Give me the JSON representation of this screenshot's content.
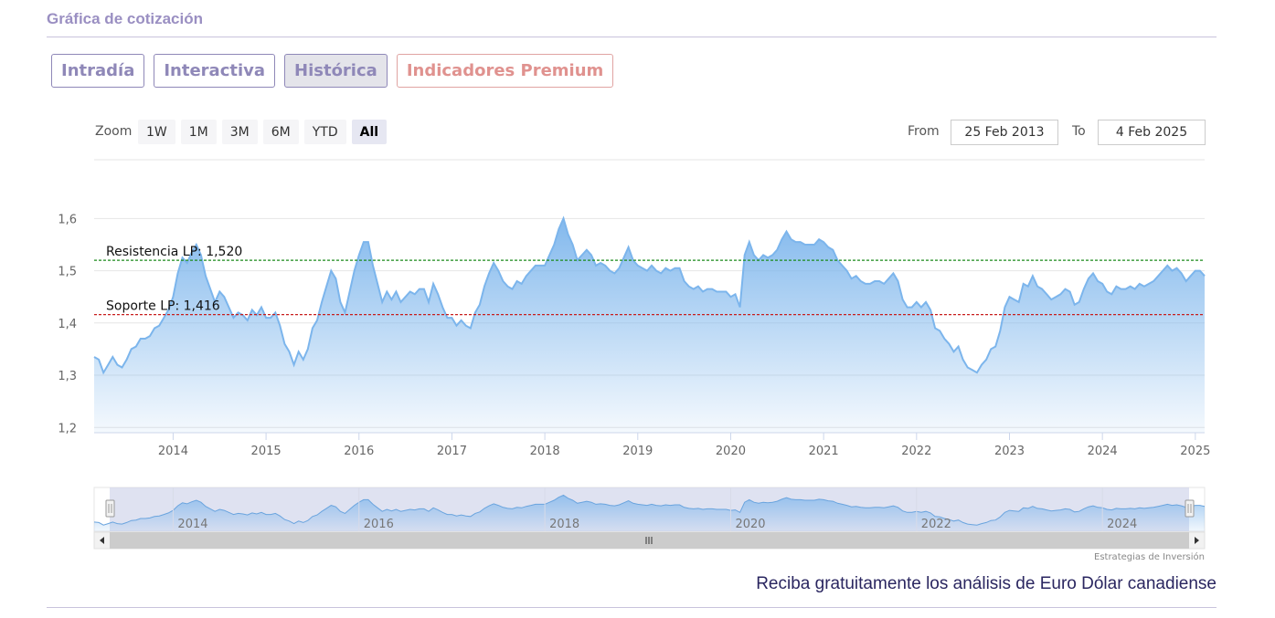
{
  "section_title": "Gráfica de cotización",
  "tabs": [
    {
      "label": "Intradía",
      "active": false,
      "premium": false
    },
    {
      "label": "Interactiva",
      "active": false,
      "premium": false
    },
    {
      "label": "Histórica",
      "active": true,
      "premium": false
    },
    {
      "label": "Indicadores Premium",
      "active": false,
      "premium": true
    }
  ],
  "zoom": {
    "label": "Zoom",
    "buttons": [
      "1W",
      "1M",
      "3M",
      "6M",
      "YTD",
      "All"
    ],
    "selected": "All"
  },
  "range": {
    "from_label": "From",
    "from_value": "25 Feb 2013",
    "to_label": "To",
    "to_value": "4 Feb 2025"
  },
  "colors": {
    "series_line": "#7cb5ec",
    "resistance_line": "#1a8a1a",
    "support_line": "#c81e1e",
    "navigator_mask": "#c5cbe6"
  },
  "chart_data": {
    "type": "area",
    "y_ticks": [
      "1,2",
      "1,3",
      "1,4",
      "1,5",
      "1,6"
    ],
    "ylim": [
      1.19,
      1.66
    ],
    "x_ticks": [
      "2014",
      "2015",
      "2016",
      "2017",
      "2018",
      "2019",
      "2020",
      "2021",
      "2022",
      "2023",
      "2024",
      "2025"
    ],
    "xlim": [
      2013.15,
      2025.1
    ],
    "navigator_ticks": [
      "2014",
      "2016",
      "2018",
      "2020",
      "2022",
      "2024"
    ],
    "plot_lines": [
      {
        "label": "Resistencia LP: 1,520",
        "value": 1.52
      },
      {
        "label": "Soporte LP: 1,416",
        "value": 1.416
      }
    ],
    "credit": "Estrategias de Inversión",
    "series": [
      {
        "values": [
          [
            2013.15,
            1.335
          ],
          [
            2013.2,
            1.33
          ],
          [
            2013.25,
            1.305
          ],
          [
            2013.3,
            1.32
          ],
          [
            2013.35,
            1.335
          ],
          [
            2013.4,
            1.32
          ],
          [
            2013.45,
            1.315
          ],
          [
            2013.5,
            1.33
          ],
          [
            2013.55,
            1.35
          ],
          [
            2013.6,
            1.355
          ],
          [
            2013.65,
            1.37
          ],
          [
            2013.7,
            1.37
          ],
          [
            2013.75,
            1.375
          ],
          [
            2013.8,
            1.39
          ],
          [
            2013.85,
            1.395
          ],
          [
            2013.9,
            1.41
          ],
          [
            2013.95,
            1.425
          ],
          [
            2014.0,
            1.45
          ],
          [
            2014.05,
            1.495
          ],
          [
            2014.1,
            1.525
          ],
          [
            2014.15,
            1.515
          ],
          [
            2014.2,
            1.535
          ],
          [
            2014.25,
            1.55
          ],
          [
            2014.3,
            1.53
          ],
          [
            2014.35,
            1.49
          ],
          [
            2014.4,
            1.465
          ],
          [
            2014.45,
            1.44
          ],
          [
            2014.5,
            1.46
          ],
          [
            2014.55,
            1.45
          ],
          [
            2014.6,
            1.43
          ],
          [
            2014.65,
            1.41
          ],
          [
            2014.7,
            1.42
          ],
          [
            2014.75,
            1.415
          ],
          [
            2014.8,
            1.405
          ],
          [
            2014.85,
            1.425
          ],
          [
            2014.9,
            1.415
          ],
          [
            2014.95,
            1.43
          ],
          [
            2015.0,
            1.41
          ],
          [
            2015.05,
            1.41
          ],
          [
            2015.1,
            1.42
          ],
          [
            2015.15,
            1.395
          ],
          [
            2015.2,
            1.36
          ],
          [
            2015.25,
            1.345
          ],
          [
            2015.3,
            1.32
          ],
          [
            2015.35,
            1.345
          ],
          [
            2015.4,
            1.33
          ],
          [
            2015.45,
            1.35
          ],
          [
            2015.5,
            1.39
          ],
          [
            2015.55,
            1.405
          ],
          [
            2015.6,
            1.44
          ],
          [
            2015.65,
            1.47
          ],
          [
            2015.7,
            1.5
          ],
          [
            2015.75,
            1.485
          ],
          [
            2015.8,
            1.44
          ],
          [
            2015.85,
            1.42
          ],
          [
            2015.9,
            1.46
          ],
          [
            2015.95,
            1.5
          ],
          [
            2016.0,
            1.53
          ],
          [
            2016.05,
            1.555
          ],
          [
            2016.1,
            1.555
          ],
          [
            2016.15,
            1.51
          ],
          [
            2016.2,
            1.475
          ],
          [
            2016.25,
            1.44
          ],
          [
            2016.3,
            1.46
          ],
          [
            2016.35,
            1.445
          ],
          [
            2016.4,
            1.46
          ],
          [
            2016.45,
            1.44
          ],
          [
            2016.5,
            1.45
          ],
          [
            2016.55,
            1.46
          ],
          [
            2016.6,
            1.455
          ],
          [
            2016.65,
            1.465
          ],
          [
            2016.7,
            1.465
          ],
          [
            2016.75,
            1.44
          ],
          [
            2016.8,
            1.475
          ],
          [
            2016.85,
            1.455
          ],
          [
            2016.9,
            1.43
          ],
          [
            2016.95,
            1.41
          ],
          [
            2017.0,
            1.41
          ],
          [
            2017.05,
            1.395
          ],
          [
            2017.1,
            1.405
          ],
          [
            2017.15,
            1.395
          ],
          [
            2017.2,
            1.39
          ],
          [
            2017.25,
            1.42
          ],
          [
            2017.3,
            1.435
          ],
          [
            2017.35,
            1.47
          ],
          [
            2017.4,
            1.495
          ],
          [
            2017.45,
            1.515
          ],
          [
            2017.5,
            1.5
          ],
          [
            2017.55,
            1.48
          ],
          [
            2017.6,
            1.47
          ],
          [
            2017.65,
            1.465
          ],
          [
            2017.7,
            1.48
          ],
          [
            2017.75,
            1.475
          ],
          [
            2017.8,
            1.49
          ],
          [
            2017.85,
            1.5
          ],
          [
            2017.9,
            1.51
          ],
          [
            2017.95,
            1.51
          ],
          [
            2018.0,
            1.51
          ],
          [
            2018.05,
            1.53
          ],
          [
            2018.1,
            1.55
          ],
          [
            2018.15,
            1.58
          ],
          [
            2018.2,
            1.6
          ],
          [
            2018.25,
            1.57
          ],
          [
            2018.3,
            1.55
          ],
          [
            2018.35,
            1.52
          ],
          [
            2018.4,
            1.53
          ],
          [
            2018.45,
            1.54
          ],
          [
            2018.5,
            1.53
          ],
          [
            2018.55,
            1.51
          ],
          [
            2018.6,
            1.515
          ],
          [
            2018.65,
            1.51
          ],
          [
            2018.7,
            1.5
          ],
          [
            2018.75,
            1.495
          ],
          [
            2018.8,
            1.505
          ],
          [
            2018.85,
            1.525
          ],
          [
            2018.9,
            1.545
          ],
          [
            2018.95,
            1.52
          ],
          [
            2019.0,
            1.51
          ],
          [
            2019.05,
            1.505
          ],
          [
            2019.1,
            1.5
          ],
          [
            2019.15,
            1.51
          ],
          [
            2019.2,
            1.5
          ],
          [
            2019.25,
            1.495
          ],
          [
            2019.3,
            1.505
          ],
          [
            2019.35,
            1.5
          ],
          [
            2019.4,
            1.505
          ],
          [
            2019.45,
            1.505
          ],
          [
            2019.5,
            1.48
          ],
          [
            2019.55,
            1.47
          ],
          [
            2019.6,
            1.465
          ],
          [
            2019.65,
            1.47
          ],
          [
            2019.7,
            1.46
          ],
          [
            2019.75,
            1.465
          ],
          [
            2019.8,
            1.465
          ],
          [
            2019.85,
            1.46
          ],
          [
            2019.9,
            1.46
          ],
          [
            2019.95,
            1.46
          ],
          [
            2020.0,
            1.45
          ],
          [
            2020.05,
            1.455
          ],
          [
            2020.1,
            1.43
          ],
          [
            2020.15,
            1.53
          ],
          [
            2020.2,
            1.555
          ],
          [
            2020.25,
            1.53
          ],
          [
            2020.3,
            1.52
          ],
          [
            2020.35,
            1.53
          ],
          [
            2020.4,
            1.525
          ],
          [
            2020.45,
            1.53
          ],
          [
            2020.5,
            1.54
          ],
          [
            2020.55,
            1.56
          ],
          [
            2020.6,
            1.575
          ],
          [
            2020.65,
            1.56
          ],
          [
            2020.7,
            1.555
          ],
          [
            2020.75,
            1.555
          ],
          [
            2020.8,
            1.55
          ],
          [
            2020.85,
            1.55
          ],
          [
            2020.9,
            1.55
          ],
          [
            2020.95,
            1.56
          ],
          [
            2021.0,
            1.555
          ],
          [
            2021.05,
            1.545
          ],
          [
            2021.1,
            1.54
          ],
          [
            2021.15,
            1.52
          ],
          [
            2021.2,
            1.51
          ],
          [
            2021.25,
            1.5
          ],
          [
            2021.3,
            1.485
          ],
          [
            2021.35,
            1.49
          ],
          [
            2021.4,
            1.48
          ],
          [
            2021.45,
            1.475
          ],
          [
            2021.5,
            1.475
          ],
          [
            2021.55,
            1.48
          ],
          [
            2021.6,
            1.48
          ],
          [
            2021.65,
            1.475
          ],
          [
            2021.7,
            1.485
          ],
          [
            2021.75,
            1.495
          ],
          [
            2021.8,
            1.48
          ],
          [
            2021.85,
            1.445
          ],
          [
            2021.9,
            1.43
          ],
          [
            2021.95,
            1.43
          ],
          [
            2022.0,
            1.44
          ],
          [
            2022.05,
            1.43
          ],
          [
            2022.1,
            1.44
          ],
          [
            2022.15,
            1.425
          ],
          [
            2022.2,
            1.39
          ],
          [
            2022.25,
            1.385
          ],
          [
            2022.3,
            1.37
          ],
          [
            2022.35,
            1.36
          ],
          [
            2022.4,
            1.345
          ],
          [
            2022.45,
            1.355
          ],
          [
            2022.5,
            1.33
          ],
          [
            2022.55,
            1.315
          ],
          [
            2022.6,
            1.31
          ],
          [
            2022.65,
            1.305
          ],
          [
            2022.7,
            1.32
          ],
          [
            2022.75,
            1.33
          ],
          [
            2022.8,
            1.35
          ],
          [
            2022.85,
            1.355
          ],
          [
            2022.9,
            1.385
          ],
          [
            2022.95,
            1.43
          ],
          [
            2023.0,
            1.45
          ],
          [
            2023.05,
            1.445
          ],
          [
            2023.1,
            1.44
          ],
          [
            2023.15,
            1.475
          ],
          [
            2023.2,
            1.47
          ],
          [
            2023.25,
            1.49
          ],
          [
            2023.3,
            1.47
          ],
          [
            2023.35,
            1.465
          ],
          [
            2023.4,
            1.455
          ],
          [
            2023.45,
            1.445
          ],
          [
            2023.5,
            1.45
          ],
          [
            2023.55,
            1.455
          ],
          [
            2023.6,
            1.465
          ],
          [
            2023.65,
            1.46
          ],
          [
            2023.7,
            1.435
          ],
          [
            2023.75,
            1.44
          ],
          [
            2023.8,
            1.465
          ],
          [
            2023.85,
            1.485
          ],
          [
            2023.9,
            1.495
          ],
          [
            2023.95,
            1.48
          ],
          [
            2024.0,
            1.475
          ],
          [
            2024.05,
            1.46
          ],
          [
            2024.1,
            1.455
          ],
          [
            2024.15,
            1.47
          ],
          [
            2024.2,
            1.465
          ],
          [
            2024.25,
            1.465
          ],
          [
            2024.3,
            1.47
          ],
          [
            2024.35,
            1.465
          ],
          [
            2024.4,
            1.475
          ],
          [
            2024.45,
            1.47
          ],
          [
            2024.5,
            1.475
          ],
          [
            2024.55,
            1.48
          ],
          [
            2024.6,
            1.49
          ],
          [
            2024.65,
            1.5
          ],
          [
            2024.7,
            1.51
          ],
          [
            2024.75,
            1.5
          ],
          [
            2024.8,
            1.505
          ],
          [
            2024.85,
            1.495
          ],
          [
            2024.9,
            1.48
          ],
          [
            2024.95,
            1.49
          ],
          [
            2025.0,
            1.5
          ],
          [
            2025.05,
            1.5
          ],
          [
            2025.1,
            1.49
          ]
        ]
      }
    ]
  },
  "footer": {
    "cta": "Reciba gratuitamente los análisis de Euro Dólar canadiense"
  }
}
